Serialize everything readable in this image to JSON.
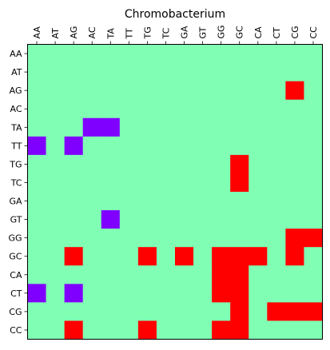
{
  "chart_data": {
    "type": "heatmap",
    "title": "Chromobacterium",
    "x_categories": [
      "AA",
      "AT",
      "AG",
      "AC",
      "TA",
      "TT",
      "TG",
      "TC",
      "GA",
      "GT",
      "GG",
      "GC",
      "CA",
      "CT",
      "CG",
      "CC"
    ],
    "y_categories": [
      "AA",
      "AT",
      "AG",
      "AC",
      "TA",
      "TT",
      "TG",
      "TC",
      "GA",
      "GT",
      "GG",
      "GC",
      "CA",
      "CT",
      "CG",
      "CC"
    ],
    "values": [
      [
        0,
        0,
        0,
        0,
        0,
        0,
        0,
        0,
        0,
        0,
        0,
        0,
        0,
        0,
        0,
        0
      ],
      [
        0,
        0,
        0,
        0,
        0,
        0,
        0,
        0,
        0,
        0,
        0,
        0,
        0,
        0,
        0,
        0
      ],
      [
        0,
        0,
        0,
        0,
        0,
        0,
        0,
        0,
        0,
        0,
        0,
        0,
        0,
        0,
        1,
        0
      ],
      [
        0,
        0,
        0,
        0,
        0,
        0,
        0,
        0,
        0,
        0,
        0,
        0,
        0,
        0,
        0,
        0
      ],
      [
        0,
        0,
        0,
        -1,
        -1,
        0,
        0,
        0,
        0,
        0,
        0,
        0,
        0,
        0,
        0,
        0
      ],
      [
        -1,
        0,
        -1,
        0,
        0,
        0,
        0,
        0,
        0,
        0,
        0,
        0,
        0,
        0,
        0,
        0
      ],
      [
        0,
        0,
        0,
        0,
        0,
        0,
        0,
        0,
        0,
        0,
        0,
        1,
        0,
        0,
        0,
        0
      ],
      [
        0,
        0,
        0,
        0,
        0,
        0,
        0,
        0,
        0,
        0,
        0,
        1,
        0,
        0,
        0,
        0
      ],
      [
        0,
        0,
        0,
        0,
        0,
        0,
        0,
        0,
        0,
        0,
        0,
        0,
        0,
        0,
        0,
        0
      ],
      [
        0,
        0,
        0,
        0,
        -1,
        0,
        0,
        0,
        0,
        0,
        0,
        0,
        0,
        0,
        0,
        0
      ],
      [
        0,
        0,
        0,
        0,
        0,
        0,
        0,
        0,
        0,
        0,
        0,
        0,
        0,
        0,
        1,
        1
      ],
      [
        0,
        0,
        1,
        0,
        0,
        0,
        1,
        0,
        1,
        0,
        1,
        1,
        1,
        0,
        1,
        0
      ],
      [
        0,
        0,
        0,
        0,
        0,
        0,
        0,
        0,
        0,
        0,
        1,
        1,
        0,
        0,
        0,
        0
      ],
      [
        -1,
        0,
        -1,
        0,
        0,
        0,
        0,
        0,
        0,
        0,
        1,
        1,
        0,
        0,
        0,
        0
      ],
      [
        0,
        0,
        0,
        0,
        0,
        0,
        0,
        0,
        0,
        0,
        0,
        1,
        0,
        1,
        1,
        1
      ],
      [
        0,
        0,
        1,
        0,
        0,
        0,
        1,
        0,
        0,
        0,
        1,
        1,
        0,
        0,
        0,
        0
      ]
    ],
    "value_range": [
      -1,
      1
    ],
    "colors": {
      "-1": "#8000ff",
      "0": "#80ffb4",
      "1": "#ff0000"
    },
    "x_tick_position": "top",
    "grid": false
  }
}
